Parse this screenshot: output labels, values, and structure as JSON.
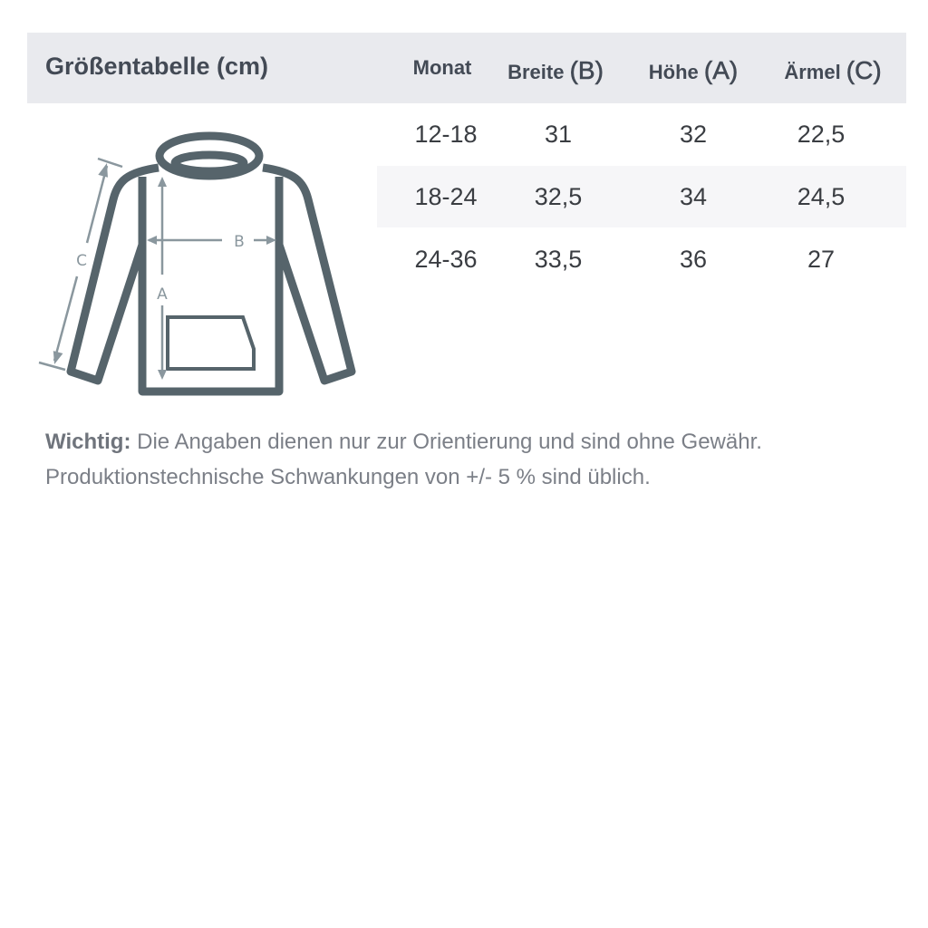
{
  "title": "Größentabelle (cm)",
  "columns": [
    {
      "label": "Monat",
      "letter": ""
    },
    {
      "label": "Breite",
      "letter": "(B)"
    },
    {
      "label": "Höhe",
      "letter": "(A)"
    },
    {
      "label": "Ärmel",
      "letter": "(C)"
    }
  ],
  "rows": [
    [
      "12-18",
      "31",
      "32",
      "22,5"
    ],
    [
      "18-24",
      "32,5",
      "34",
      "24,5"
    ],
    [
      "24-36",
      "33,5",
      "36",
      "27"
    ]
  ],
  "diagram": {
    "labels": {
      "a": "A",
      "b": "B",
      "c": "C"
    },
    "outline_color": "#56646b",
    "arrow_color": "#8a979e"
  },
  "note": {
    "bold": "Wichtig:",
    "line1": " Die Angaben dienen nur zur Orientierung und sind ohne Gewähr.",
    "line2": "Produktionstechnische Schwankungen von +/- 5 % sind üblich."
  }
}
